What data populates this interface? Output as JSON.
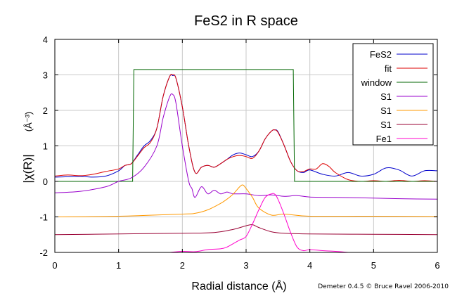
{
  "chart_data": {
    "type": "line",
    "title": "FeS2 in R space",
    "xlabel": "Radial distance     (Å)",
    "ylabel": "|χ(R)|",
    "ylabel_unit": "(Å⁻³)",
    "xlim": [
      0,
      6
    ],
    "ylim": [
      -2,
      4
    ],
    "xticks": [
      0,
      1,
      2,
      3,
      4,
      5,
      6
    ],
    "xtick_labels": [
      "0",
      "1",
      "2",
      "3",
      "4",
      "5",
      "6"
    ],
    "yticks": [
      -2,
      -1,
      0,
      1,
      2,
      3,
      4
    ],
    "ytick_labels": [
      "-2",
      "-1",
      "0",
      "1",
      "2",
      "3",
      "4"
    ],
    "grid": true,
    "legend_position": "top-right",
    "series": [
      {
        "name": "FeS2",
        "color": "#0000cc",
        "x": [
          0,
          0.2,
          0.4,
          0.6,
          0.8,
          1.0,
          1.1,
          1.2,
          1.3,
          1.4,
          1.5,
          1.6,
          1.7,
          1.8,
          1.85,
          1.9,
          2.0,
          2.1,
          2.2,
          2.3,
          2.4,
          2.5,
          2.6,
          2.7,
          2.8,
          2.9,
          3.0,
          3.1,
          3.2,
          3.3,
          3.4,
          3.45,
          3.5,
          3.6,
          3.7,
          3.8,
          3.9,
          4.0,
          4.2,
          4.4,
          4.6,
          4.8,
          5.0,
          5.2,
          5.4,
          5.6,
          5.8,
          6.0
        ],
        "y": [
          0.12,
          0.13,
          0.14,
          0.12,
          0.15,
          0.3,
          0.45,
          0.5,
          0.75,
          1.0,
          1.15,
          1.5,
          2.4,
          2.95,
          2.98,
          2.9,
          2.1,
          1.0,
          0.25,
          0.4,
          0.45,
          0.4,
          0.5,
          0.62,
          0.75,
          0.8,
          0.75,
          0.7,
          0.85,
          1.2,
          1.42,
          1.45,
          1.4,
          1.0,
          0.55,
          0.3,
          0.25,
          0.32,
          0.2,
          0.15,
          0.25,
          0.15,
          0.2,
          0.38,
          0.32,
          0.15,
          0.3,
          0.3
        ]
      },
      {
        "name": "fit",
        "color": "#dd0000",
        "x": [
          0,
          0.2,
          0.4,
          0.6,
          0.8,
          1.0,
          1.1,
          1.2,
          1.3,
          1.4,
          1.5,
          1.6,
          1.7,
          1.8,
          1.85,
          1.9,
          2.0,
          2.1,
          2.2,
          2.3,
          2.4,
          2.5,
          2.6,
          2.7,
          2.8,
          2.9,
          3.0,
          3.1,
          3.2,
          3.3,
          3.4,
          3.45,
          3.5,
          3.6,
          3.7,
          3.8,
          3.9,
          4.0,
          4.1,
          4.2,
          4.3,
          4.4,
          4.6,
          4.8,
          5.0,
          5.2,
          5.4,
          5.6,
          5.8,
          6.0
        ],
        "y": [
          0.15,
          0.18,
          0.16,
          0.2,
          0.28,
          0.35,
          0.45,
          0.5,
          0.72,
          0.95,
          1.1,
          1.5,
          2.4,
          2.95,
          3.0,
          2.9,
          2.1,
          1.0,
          0.25,
          0.4,
          0.45,
          0.4,
          0.5,
          0.62,
          0.7,
          0.73,
          0.7,
          0.65,
          0.85,
          1.2,
          1.42,
          1.45,
          1.38,
          1.0,
          0.55,
          0.3,
          0.28,
          0.35,
          0.35,
          0.5,
          0.42,
          0.25,
          0.05,
          0.0,
          0.02,
          0.0,
          0.03,
          0.0,
          0.02,
          0.0
        ]
      },
      {
        "name": "window",
        "color": "#006600",
        "x": [
          0,
          1.22,
          1.24,
          3.74,
          3.76,
          6.0
        ],
        "y": [
          0,
          0,
          3.15,
          3.15,
          0,
          0
        ]
      },
      {
        "name": "S1",
        "color": "#9900cc",
        "x": [
          0,
          0.4,
          0.8,
          1.0,
          1.2,
          1.4,
          1.6,
          1.7,
          1.8,
          1.85,
          1.9,
          2.0,
          2.1,
          2.15,
          2.2,
          2.3,
          2.4,
          2.5,
          2.6,
          2.7,
          2.8,
          3.0,
          3.2,
          3.4,
          3.6,
          3.8,
          4.0,
          4.4,
          5.0,
          5.5,
          6.0
        ],
        "y": [
          -0.32,
          -0.28,
          -0.15,
          0.0,
          0.1,
          0.4,
          1.0,
          1.8,
          2.38,
          2.45,
          2.2,
          1.0,
          0.0,
          -0.2,
          -0.45,
          -0.15,
          -0.35,
          -0.25,
          -0.35,
          -0.3,
          -0.35,
          -0.35,
          -0.4,
          -0.38,
          -0.42,
          -0.4,
          -0.44,
          -0.45,
          -0.47,
          -0.49,
          -0.5
        ]
      },
      {
        "name": "S1",
        "color": "#ff9900",
        "x": [
          0,
          1.0,
          2.0,
          2.2,
          2.4,
          2.6,
          2.7,
          2.8,
          2.9,
          2.95,
          3.0,
          3.1,
          3.2,
          3.4,
          3.6,
          4.0,
          5.0,
          6.0
        ],
        "y": [
          -1.0,
          -0.98,
          -0.92,
          -0.9,
          -0.8,
          -0.62,
          -0.5,
          -0.35,
          -0.15,
          -0.1,
          -0.2,
          -0.45,
          -0.75,
          -0.95,
          -0.92,
          -0.98,
          -0.98,
          -0.99
        ]
      },
      {
        "name": "S1",
        "color": "#990033",
        "x": [
          0,
          1.0,
          2.0,
          2.5,
          2.8,
          3.0,
          3.1,
          3.2,
          3.4,
          3.6,
          4.0,
          5.0,
          6.0
        ],
        "y": [
          -1.5,
          -1.48,
          -1.46,
          -1.44,
          -1.35,
          -1.25,
          -1.22,
          -1.3,
          -1.42,
          -1.46,
          -1.48,
          -1.49,
          -1.5
        ],
        "style": "line"
      },
      {
        "name": "Fe1",
        "color": "#ff00cc",
        "x": [
          1.8,
          2.0,
          2.2,
          2.4,
          2.6,
          2.7,
          2.8,
          2.9,
          3.0,
          3.1,
          3.2,
          3.3,
          3.4,
          3.45,
          3.5,
          3.6,
          3.7,
          3.8,
          3.9,
          4.0,
          4.2,
          4.4,
          4.6
        ],
        "y": [
          -2.0,
          -1.97,
          -1.98,
          -1.92,
          -1.9,
          -1.85,
          -1.75,
          -1.65,
          -1.55,
          -1.2,
          -0.8,
          -0.45,
          -0.35,
          -0.36,
          -0.5,
          -0.95,
          -1.45,
          -1.85,
          -1.95,
          -1.92,
          -1.95,
          -1.97,
          -2.0
        ]
      }
    ]
  },
  "footer": {
    "credit": "Demeter 0.4.5 © Bruce Ravel 2006-2010"
  }
}
